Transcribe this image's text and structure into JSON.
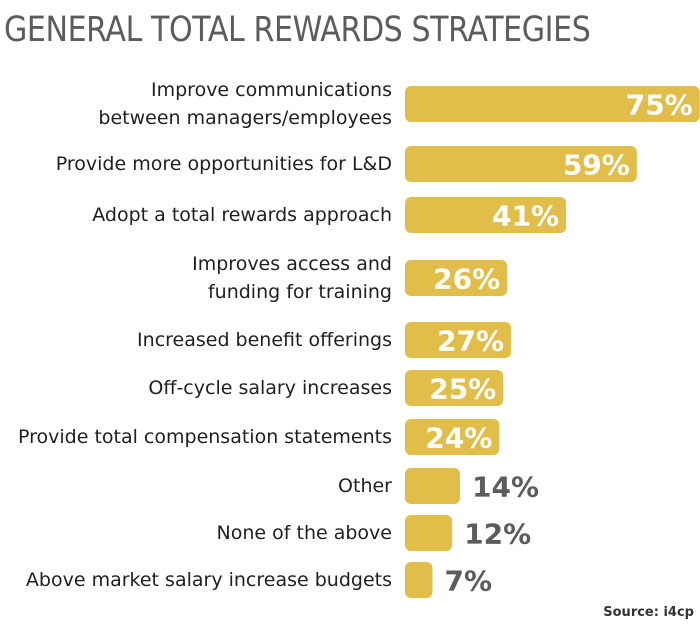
{
  "chart_data": {
    "type": "bar",
    "orientation": "horizontal",
    "title": "GENERAL TOTAL REWARDS STRATEGIES",
    "categories": [
      [
        "Improve communications",
        "between managers/employees"
      ],
      [
        "Provide more opportunities for L&D"
      ],
      [
        "Adopt a total rewards approach"
      ],
      [
        "Improves access and",
        "funding for training"
      ],
      [
        "Increased benefit offerings"
      ],
      [
        "Off-cycle salary increases"
      ],
      [
        "Provide total compensation statements"
      ],
      [
        "Other"
      ],
      [
        "None of the above"
      ],
      [
        "Above market salary increase budgets"
      ]
    ],
    "values": [
      75,
      59,
      41,
      26,
      27,
      25,
      24,
      14,
      12,
      7
    ],
    "value_labels": [
      "75%",
      "59%",
      "41%",
      "26%",
      "27%",
      "25%",
      "24%",
      "14%",
      "12%",
      "7%"
    ],
    "unit": "%",
    "grid": false,
    "legend": "none",
    "bar_color": "#e1bd4a",
    "label_inside_color": "#ffffff",
    "label_outside_color": "#5c5c5c",
    "category_label_color": "#1f1f1f"
  },
  "source": "Source: i4cp"
}
